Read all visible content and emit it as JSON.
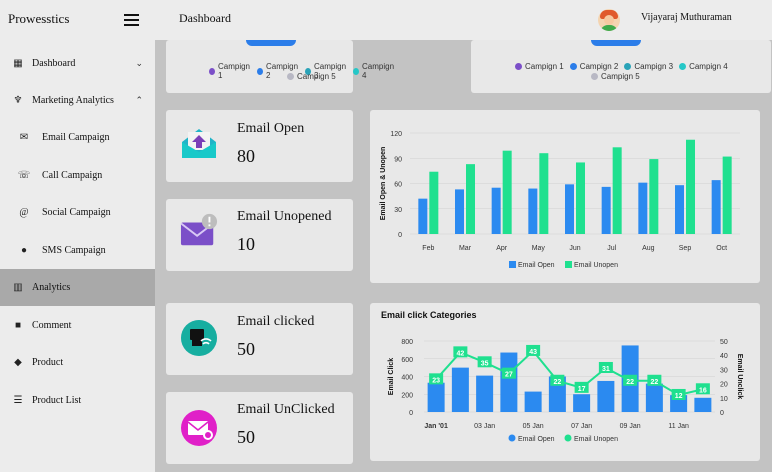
{
  "app": {
    "brand": "Prowesstics"
  },
  "header": {
    "title": "Dashboard",
    "user_name": "Vijayaraj Muthuraman"
  },
  "sidebar": {
    "items": [
      {
        "label": "Dashboard",
        "icon": "grid-icon"
      },
      {
        "label": "Marketing Analytics",
        "icon": "sitemap-icon"
      },
      {
        "label": "Email Campaign",
        "icon": "envelope-icon"
      },
      {
        "label": "Call Campaign",
        "icon": "phone-icon"
      },
      {
        "label": "Social Campaign",
        "icon": "at-icon"
      },
      {
        "label": "SMS Campaign",
        "icon": "sms-icon"
      },
      {
        "label": "Analytics",
        "icon": "bar-chart-icon"
      },
      {
        "label": "Comment",
        "icon": "comment-icon"
      },
      {
        "label": "Product",
        "icon": "bag-icon"
      },
      {
        "label": "Product List",
        "icon": "list-icon"
      }
    ]
  },
  "campaign_legend": {
    "items": [
      "Campign 1",
      "Campign 2",
      "Campign 3",
      "Campign 4",
      "Campign 5"
    ],
    "colors": [
      "#7b4fc8",
      "#2b7de9",
      "#2aa3b8",
      "#25c7c7",
      "#b8b8c4"
    ]
  },
  "stats": [
    {
      "label": "Email Open",
      "value": "80",
      "icon": "email-open-icon"
    },
    {
      "label": "Email Unopened",
      "value": "10",
      "icon": "email-unopened-icon"
    },
    {
      "label": "Email clicked",
      "value": "50",
      "icon": "email-clicked-icon"
    },
    {
      "label": "Email UnClicked",
      "value": "50",
      "icon": "email-unclicked-icon"
    }
  ],
  "chart_data": [
    {
      "type": "bar",
      "title": "",
      "ylabel": "Email Open & Unopen",
      "categories": [
        "Feb",
        "Mar",
        "Apr",
        "May",
        "Jun",
        "Jul",
        "Aug",
        "Sep",
        "Oct"
      ],
      "ylim": [
        0,
        120
      ],
      "yticks": [
        0,
        30,
        60,
        90,
        120
      ],
      "series": [
        {
          "name": "Email Open",
          "color": "#2b8af0",
          "values": [
            42,
            53,
            55,
            54,
            59,
            56,
            61,
            58,
            64
          ]
        },
        {
          "name": "Email Unopen",
          "color": "#1fe08f",
          "values": [
            74,
            83,
            99,
            96,
            85,
            103,
            89,
            112,
            92
          ]
        }
      ],
      "legend": "bottom"
    },
    {
      "type": "bar",
      "title": "Email click Categories",
      "ylabel": "Email Click",
      "y2label": "Email Unclick",
      "x_tick_labels": [
        "Jan '01",
        "03 Jan",
        "05 Jan",
        "07 Jan",
        "09 Jan",
        "11 Jan"
      ],
      "ylim": [
        0,
        800
      ],
      "yticks": [
        0,
        200,
        400,
        600,
        800
      ],
      "y2lim": [
        0,
        50
      ],
      "y2ticks": [
        0,
        10,
        20,
        30,
        40,
        50
      ],
      "series": [
        {
          "name": "Email Open",
          "type": "bar",
          "color": "#2b8af0",
          "values": [
            330,
            500,
            410,
            670,
            230,
            400,
            200,
            350,
            750,
            320,
            190,
            160
          ]
        },
        {
          "name": "Email Unopen",
          "type": "line",
          "color": "#1fe08f",
          "values": [
            23,
            42,
            35,
            27,
            43,
            22,
            17,
            31,
            22,
            22,
            12,
            16
          ]
        }
      ],
      "legend": "bottom"
    }
  ]
}
